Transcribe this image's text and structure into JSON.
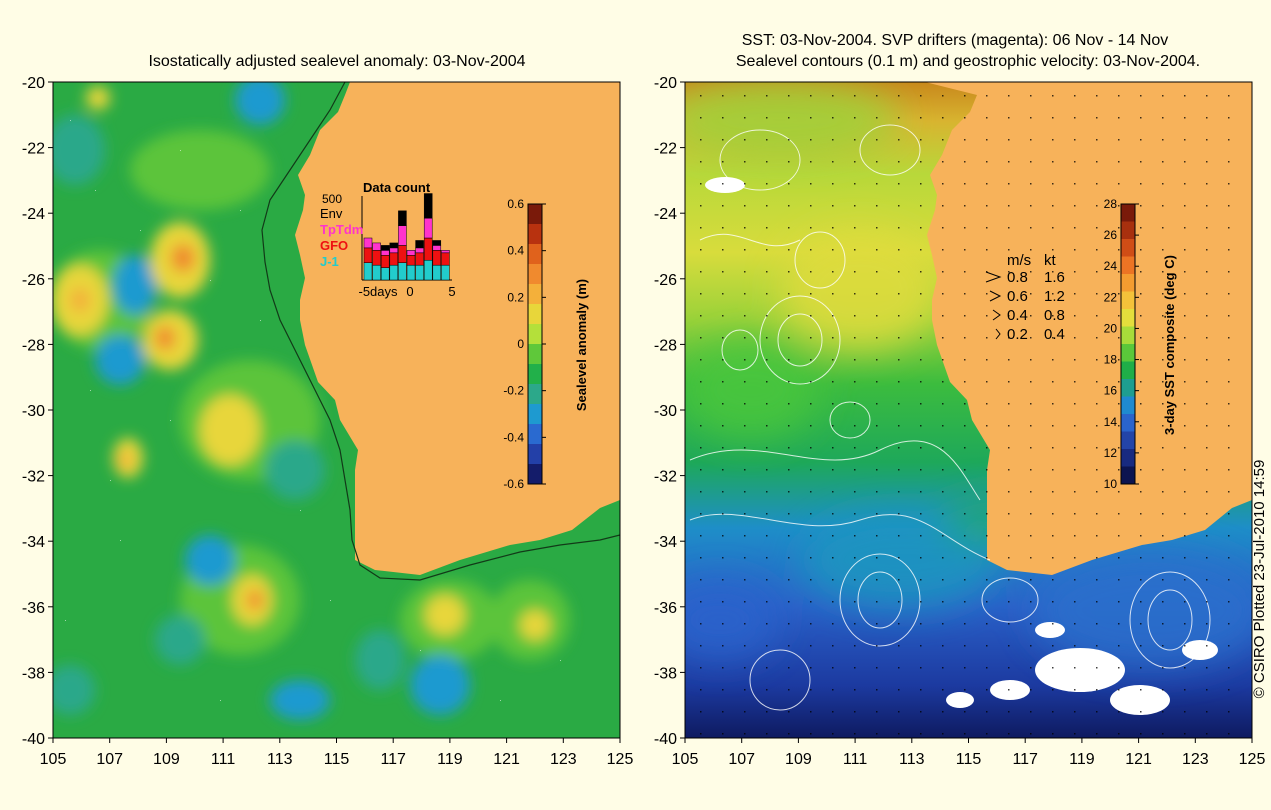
{
  "left_panel": {
    "title": "Isostatically adjusted sealevel anomaly: 03-Nov-2004",
    "lat_ticks": [
      "-20",
      "-22",
      "-24",
      "-26",
      "-28",
      "-30",
      "-32",
      "-34",
      "-36",
      "-38",
      "-40"
    ],
    "lon_ticks": [
      "105",
      "107",
      "109",
      "111",
      "113",
      "115",
      "117",
      "119",
      "121",
      "123",
      "125"
    ],
    "colorbar": {
      "label": "Sealevel anomaly (m)",
      "ticks": [
        "0.6",
        "0.4",
        "0.2",
        "0",
        "-0.2",
        "-0.4",
        "-0.6"
      ],
      "colors": [
        "#7a1a0a",
        "#b8320f",
        "#e0621c",
        "#f08a2e",
        "#f4b03a",
        "#e8d63a",
        "#b4e03a",
        "#5fc83a",
        "#22b04a",
        "#2ca88a",
        "#1e9ad0",
        "#2a6ad0",
        "#2340a8",
        "#141c6a"
      ]
    },
    "data_count_inset": {
      "title": "Data count",
      "y_max_label": "500",
      "x_tick_labels": [
        "-5days",
        "0",
        "5"
      ],
      "legend": [
        {
          "label": "Env",
          "color": "#000000"
        },
        {
          "label": "TpTdm",
          "color": "#ff33cc"
        },
        {
          "label": "GFO",
          "color": "#ee1111"
        },
        {
          "label": "J-1",
          "color": "#22cccc"
        }
      ],
      "bars": [
        {
          "env": 0,
          "tp": 20,
          "gfo": 30,
          "j1": 35
        },
        {
          "env": 0,
          "tp": 15,
          "gfo": 30,
          "j1": 30
        },
        {
          "env": 10,
          "tp": 10,
          "gfo": 25,
          "j1": 25
        },
        {
          "env": 10,
          "tp": 10,
          "gfo": 25,
          "j1": 30
        },
        {
          "env": 30,
          "tp": 40,
          "gfo": 35,
          "j1": 35
        },
        {
          "env": 0,
          "tp": 10,
          "gfo": 20,
          "j1": 30
        },
        {
          "env": 15,
          "tp": 10,
          "gfo": 25,
          "j1": 30
        },
        {
          "env": 50,
          "tp": 40,
          "gfo": 45,
          "j1": 40
        },
        {
          "env": 10,
          "tp": 10,
          "gfo": 30,
          "j1": 30
        },
        {
          "env": 0,
          "tp": 5,
          "gfo": 25,
          "j1": 30
        }
      ]
    }
  },
  "right_panel": {
    "title_line1": "SST: 03-Nov-2004. SVP drifters (magenta): 06 Nov - 14 Nov",
    "title_line2": "Sealevel contours (0.1 m) and geostrophic velocity: 03-Nov-2004.",
    "lat_ticks": [
      "-20",
      "-22",
      "-24",
      "-26",
      "-28",
      "-30",
      "-32",
      "-34",
      "-36",
      "-38",
      "-40"
    ],
    "lon_ticks": [
      "105",
      "107",
      "109",
      "111",
      "113",
      "115",
      "117",
      "119",
      "121",
      "123",
      "125"
    ],
    "colorbar": {
      "label": "3-day SST composite (deg C)",
      "ticks": [
        "28",
        "26",
        "24",
        "22",
        "20",
        "18",
        "16",
        "14",
        "12",
        "10"
      ],
      "colors": [
        "#7a1a0a",
        "#a8300e",
        "#d04d16",
        "#ec7424",
        "#f49c30",
        "#f4c23a",
        "#e4de3c",
        "#a8dc3a",
        "#5ac83a",
        "#1fae48",
        "#1e9e90",
        "#1f8ad0",
        "#2a64cc",
        "#2344a8",
        "#182a80",
        "#0c1450"
      ]
    },
    "velocity_legend": {
      "header_ms": "m/s",
      "header_kt": "kt",
      "rows": [
        {
          "ms": "0.8",
          "kt": "1.6"
        },
        {
          "ms": "0.6",
          "kt": "1.2"
        },
        {
          "ms": "0.4",
          "kt": "0.8"
        },
        {
          "ms": "0.2",
          "kt": "0.4"
        }
      ]
    }
  },
  "copyright": "© CSIRO Plotted 23-Jul-2010 14:59",
  "colors": {
    "land": "#f7b25a",
    "background": "#fffde6"
  }
}
